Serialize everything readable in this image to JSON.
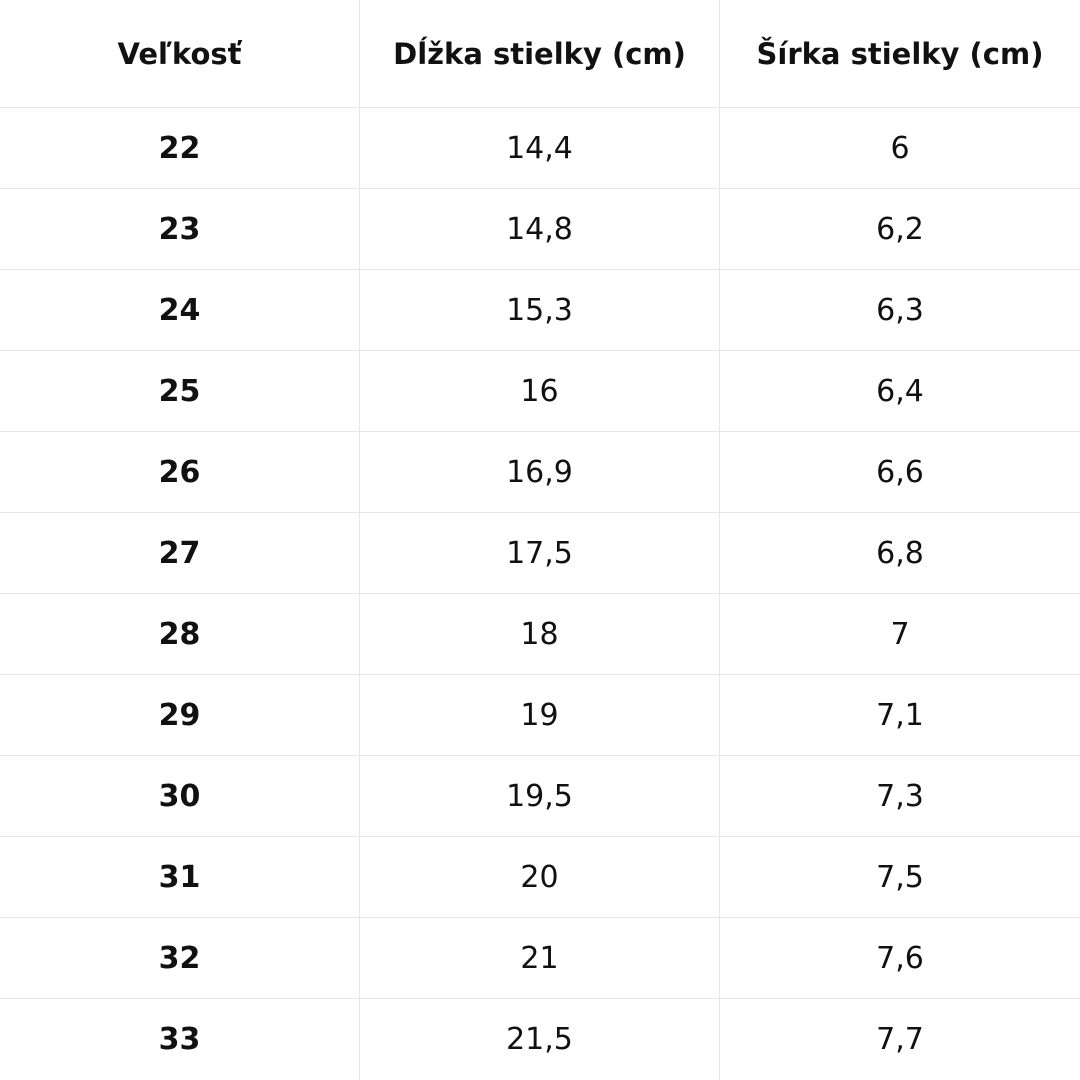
{
  "table": {
    "header": [
      "Veľkosť",
      "Dĺžka stielky (cm)",
      "Šírka stielky (cm)"
    ],
    "rows": [
      [
        "22",
        "14,4",
        "6"
      ],
      [
        "23",
        "14,8",
        "6,2"
      ],
      [
        "24",
        "15,3",
        "6,3"
      ],
      [
        "25",
        "16",
        "6,4"
      ],
      [
        "26",
        "16,9",
        "6,6"
      ],
      [
        "27",
        "17,5",
        "6,8"
      ],
      [
        "28",
        "18",
        "7"
      ],
      [
        "29",
        "19",
        "7,1"
      ],
      [
        "30",
        "19,5",
        "7,3"
      ],
      [
        "31",
        "20",
        "7,5"
      ],
      [
        "32",
        "21",
        "7,6"
      ],
      [
        "33",
        "21,5",
        "7,7"
      ]
    ]
  }
}
